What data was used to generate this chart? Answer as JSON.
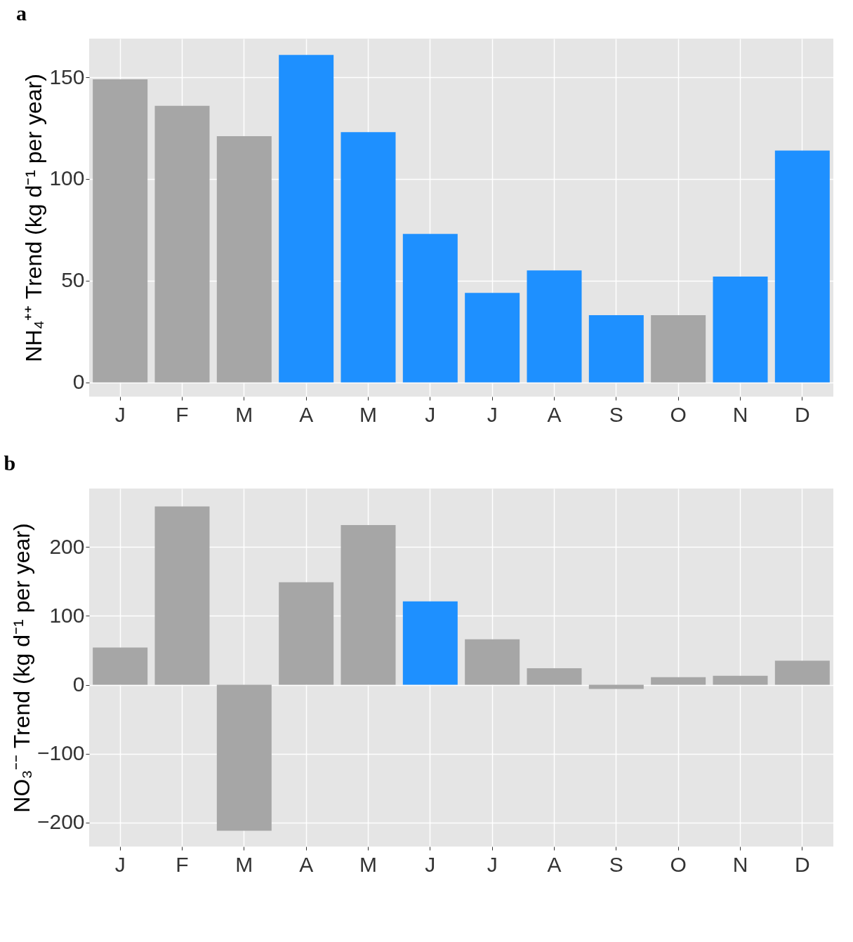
{
  "chart_data": [
    {
      "type": "bar",
      "title": "a",
      "ylabel": "NH₄⁺⁺ Trend (kg d⁻¹ per year)",
      "categories": [
        "J",
        "F",
        "M",
        "A",
        "M",
        "J",
        "J",
        "A",
        "S",
        "O",
        "N",
        "D"
      ],
      "values": [
        149,
        136,
        121,
        161,
        123,
        73,
        44,
        55,
        33,
        33,
        52,
        114
      ],
      "colors": [
        "#a6a6a6",
        "#a6a6a6",
        "#a6a6a6",
        "#1e90ff",
        "#1e90ff",
        "#1e90ff",
        "#1e90ff",
        "#1e90ff",
        "#1e90ff",
        "#a6a6a6",
        "#1e90ff",
        "#1e90ff"
      ],
      "ylim": [
        -7,
        169
      ],
      "yticks": [
        0,
        50,
        100,
        150
      ],
      "grid": true
    },
    {
      "type": "bar",
      "title": "b",
      "ylabel": "NO₃⁻⁻ Trend (kg d⁻¹ per year)",
      "categories": [
        "J",
        "F",
        "M",
        "A",
        "M",
        "J",
        "J",
        "A",
        "S",
        "O",
        "N",
        "D"
      ],
      "values": [
        54,
        259,
        -212,
        149,
        232,
        121,
        66,
        24,
        -6,
        11,
        13,
        35
      ],
      "colors": [
        "#a6a6a6",
        "#a6a6a6",
        "#a6a6a6",
        "#a6a6a6",
        "#a6a6a6",
        "#1e90ff",
        "#a6a6a6",
        "#a6a6a6",
        "#a6a6a6",
        "#a6a6a6",
        "#a6a6a6",
        "#a6a6a6"
      ],
      "ylim": [
        -235,
        285
      ],
      "yticks": [
        -200,
        -100,
        0,
        100,
        200
      ],
      "grid": true
    }
  ]
}
